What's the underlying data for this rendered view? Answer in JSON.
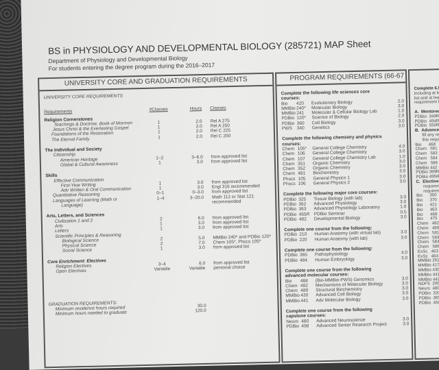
{
  "title": "BS in PHYSIOLOGY AND DEVELOPMENTAL BIOLOGY (285721) MAP Sheet",
  "department": "Department of Physiology and Developmental Biology",
  "entering": "For students entering the degree program during the 2016–2017",
  "left": {
    "heading": "UNIVERSITY CORE AND GRADUATION REQUIREMENTS",
    "subheading": "UNIVERSITY CORE REQUIREMENTS",
    "columns": [
      "Requirements",
      "#Classes",
      "Hours",
      "Classes"
    ],
    "rows": [
      {
        "name": "Religion Cornerstones",
        "style": "b",
        "indent": 0
      },
      {
        "name": "Teachings & Doctrine, Book of Mormon",
        "style": "i",
        "indent": 14,
        "n": "1",
        "h": "2.0",
        "c": "Rel A 275"
      },
      {
        "name": "Jesus Christ & the Everlasting Gospel",
        "style": "i",
        "indent": 12,
        "n": "1",
        "h": "2.0",
        "c": "Rel A 250"
      },
      {
        "name": "Foundations of the Restoration",
        "style": "i",
        "indent": 10,
        "n": "1",
        "h": "2.0",
        "c": "Rel C 225"
      },
      {
        "name": "The Eternal Family",
        "style": "i",
        "indent": 10,
        "n": "1",
        "h": "2.0",
        "c": "Rel C 200"
      },
      {
        "gap": true
      },
      {
        "name": "The Individual and Society",
        "style": "b",
        "indent": 0
      },
      {
        "name": "Citizenship",
        "style": "i",
        "indent": 12
      },
      {
        "name": "American Heritage",
        "style": "i",
        "indent": 22,
        "n": "1–2",
        "h": "3–6.0",
        "c": "from approved list"
      },
      {
        "name": "Global & Cultural Awareness",
        "style": "i",
        "indent": 22,
        "n": "1",
        "h": "3.0",
        "c": "from approved list"
      },
      {
        "gap": true
      },
      {
        "name": "Skills",
        "style": "b",
        "indent": 0
      },
      {
        "name": "Effective Communication",
        "style": "i",
        "indent": 12
      },
      {
        "name": "First-Year Writing",
        "style": "i",
        "indent": 22,
        "n": "1",
        "h": "3.0",
        "c": "from approved list"
      },
      {
        "name": "Adv Written & Oral Communication",
        "style": "i",
        "indent": 22,
        "n": "1",
        "h": "3.0",
        "c": "Engl 316 recommended"
      },
      {
        "name": "Quantitative Reasoning",
        "style": "i",
        "indent": 10,
        "n": "0–1",
        "h": "0–3.0",
        "c": "from approved list"
      },
      {
        "name": "Languages of Learning (Math or",
        "style": "i",
        "indent": 10,
        "n": "1–4",
        "h": "3–20.0",
        "c": "Math 112 or Stat 121"
      },
      {
        "name": "Language)",
        "style": "i",
        "indent": 22,
        "c": "   recommended"
      },
      {
        "gap": true
      },
      {
        "name": "Arts, Letters, and Sciences",
        "style": "b",
        "indent": 0
      },
      {
        "name": "Civilization 1 and 2",
        "style": "i",
        "indent": 12,
        "n": "2",
        "h": "6.0",
        "c": "from approved list"
      },
      {
        "name": "Arts",
        "style": "i",
        "indent": 12,
        "n": "1",
        "h": "3.0",
        "c": "from approved list"
      },
      {
        "name": "Letters",
        "style": "i",
        "indent": 12,
        "n": "1",
        "h": "3.0",
        "c": "from approved list"
      },
      {
        "name": "Scientific Principles & Reasoning",
        "style": "i",
        "indent": 12
      },
      {
        "name": "Biological Science",
        "style": "i",
        "indent": 22,
        "n": "2",
        "h": "5.0",
        "c": "MMBio 240* and PDBio 120*"
      },
      {
        "name": "Physical Science",
        "style": "i",
        "indent": 22,
        "n": "2",
        "h": "7.0",
        "c": "Chem 105*, Phscs 105*"
      },
      {
        "name": "Social Science",
        "style": "i",
        "indent": 22,
        "n": "1",
        "h": "3.0",
        "c": "from approved list"
      },
      {
        "gap": true
      },
      {
        "name": "Core Enrichment: Electives",
        "style": "b i",
        "indent": 0
      },
      {
        "name": "Religion Electives",
        "style": "i",
        "indent": 12,
        "n": "3–4",
        "h": "6.0",
        "c": "from approved list"
      },
      {
        "name": "Open Electives",
        "style": "i",
        "indent": 12,
        "n": "Variable",
        "h": "Variable",
        "c": "personal choice"
      }
    ],
    "graduation": {
      "heading": "GRADUATION REQUIREMENTS:",
      "rows": [
        {
          "name": "Minimum residence hours required",
          "h": "30.0"
        },
        {
          "name": "Minimum hours needed to graduate",
          "h": "120.0"
        }
      ]
    }
  },
  "middle": {
    "heading": "PROGRAM REQUIREMENTS (66-67",
    "groups": [
      {
        "heading": "Complete the following life sciences core courses:",
        "courses": [
          [
            "Bio",
            "420",
            "Evolutionary Biology",
            "2.0"
          ],
          [
            "MMBio",
            "240*",
            "Molecular Biology",
            "3.0"
          ],
          [
            "MMBio",
            "241",
            "Molecular & Cellular Biology Lab",
            "1.0"
          ],
          [
            "PDBio",
            "120*",
            "Science of Biology",
            "2.0"
          ],
          [
            "PDBio",
            "360",
            "Cell Biology",
            "3.0"
          ],
          [
            "PWS",
            "340",
            "Genetics",
            "3.0"
          ]
        ]
      },
      {
        "heading": "Complete the following chemistry and physics courses:",
        "courses": [
          [
            "Chem",
            "105*",
            "General College Chemistry",
            "4.0"
          ],
          [
            "Chem",
            "106",
            "General College Chemistry",
            "3.0"
          ],
          [
            "Chem",
            "107",
            "General College Chemistry Lab",
            "1.0"
          ],
          [
            "Chem",
            "351",
            "Organic Chemistry",
            "3.0"
          ],
          [
            "Chem",
            "352",
            "Organic Chemistry",
            "3.0"
          ],
          [
            "Chem",
            "481",
            "Biochemistry",
            "3.0"
          ],
          [
            "Phscs",
            "105",
            "General Physics 1",
            "3.0"
          ],
          [
            "Phscs",
            "106",
            "General Physics 2",
            "3.0"
          ]
        ]
      },
      {
        "heading": "Complete the following major core courses:",
        "courses": [
          [
            "PDBio",
            "325",
            "Tissue Biology (with lab)",
            "3.0"
          ],
          [
            "PDBio",
            "362",
            "Advanced Physiology",
            "3.0"
          ],
          [
            "PDBio",
            "363",
            "Advanced Physiology Laboratory",
            "1.0"
          ],
          [
            "PDBio",
            "455R",
            "PDBio Seminar",
            "0.5"
          ],
          [
            "PDBio",
            "482",
            "Developmental Biology",
            "3.0"
          ]
        ]
      },
      {
        "heading": "Complete one course from the following:",
        "courses": [
          [
            "PDBio",
            "210",
            "Human Anatomy (with virtual lab)",
            "3.0"
          ],
          [
            "PDBio",
            "220",
            "Human Anatomy (with lab)",
            "3.0"
          ]
        ]
      },
      {
        "heading": "Complete one course from the following:",
        "courses": [
          [
            "PDBio",
            "365",
            "Pathophysiology",
            "4.0"
          ],
          [
            "PDBio",
            "484",
            "Human Embryology",
            "3.0"
          ]
        ]
      },
      {
        "heading": "Complete one course from the following advanced molecular courses:",
        "courses": [
          [
            "Bio",
            "468",
            "(Bio-MMBio-PWS) Genomics",
            "3.0"
          ],
          [
            "Chem",
            "482",
            "Mechanisms of Molecular Biology",
            "3.0"
          ],
          [
            "Chem",
            "489",
            "Structural Biochemistry",
            "3.0"
          ],
          [
            "MMBio",
            "430",
            "Advanced Cell Biology",
            "3.0"
          ],
          [
            "MMBio",
            "441",
            "Adv Molecular Biology",
            "3.0"
          ]
        ]
      },
      {
        "heading": "Complete one course from the following capstone courses:",
        "courses": [
          [
            "Neuro",
            "480",
            "Advanced Neuroscience",
            "3.0"
          ],
          [
            "PDBio",
            "498",
            "Advanced Senior Research Project",
            "3.0"
          ]
        ]
      }
    ]
  },
  "right": {
    "lines": [
      {
        "t": "Complete 6.5 ho",
        "s": "b"
      },
      {
        "t": "including at least"
      },
      {
        "t": "list and at least 2"
      },
      {
        "t": "requirement list."
      },
      {
        "t": ""
      },
      {
        "t": "A.  Mentored ex",
        "s": "b"
      },
      {
        "t": "PDBio  349R   P"
      },
      {
        "t": "PDBio  494R   U"
      },
      {
        "t": "PDBio  550R   A"
      },
      {
        "t": "B.  Advanced b",
        "s": "b"
      },
      {
        "t": "      fill any requi"
      },
      {
        "t": "      this requiremen"
      },
      {
        "t": "Bio      468"
      },
      {
        "t": "Chem   581"
      },
      {
        "t": "Chem   583"
      },
      {
        "t": "Chem   584"
      },
      {
        "t": "Chem   586"
      },
      {
        "t": "MMBio 442"
      },
      {
        "t": "PDBio 399R"
      },
      {
        "t": "PDBio 495R"
      },
      {
        "t": "C.  Elective co",
        "s": "b"
      },
      {
        "t": "      requiremen"
      },
      {
        "t": "      requiremen"
      },
      {
        "t": "Bio      350"
      },
      {
        "t": "Bio      370"
      },
      {
        "t": "Bio      421"
      },
      {
        "t": "Bio      463"
      },
      {
        "t": "Bio      468"
      },
      {
        "t": "Bio      475"
      },
      {
        "t": "Chem   482"
      },
      {
        "t": "Chem   489"
      },
      {
        "t": "Chem   581"
      },
      {
        "t": "Chem   583"
      },
      {
        "t": "Chem   584"
      },
      {
        "t": "Chem   586"
      },
      {
        "t": "ExSc   463"
      },
      {
        "t": "ExSc   464"
      },
      {
        "t": "MMBio 261"
      },
      {
        "t": "MMBio 417"
      },
      {
        "t": "MMBio 430"
      },
      {
        "t": "MMBio 441"
      },
      {
        "t": "MMBio 442"
      },
      {
        "t": "NDFS  200"
      },
      {
        "t": "Neuro  480"
      },
      {
        "t": "PDBio  320"
      },
      {
        "t": "PDBio  365"
      },
      {
        "t": "PDBio  450"
      }
    ]
  }
}
